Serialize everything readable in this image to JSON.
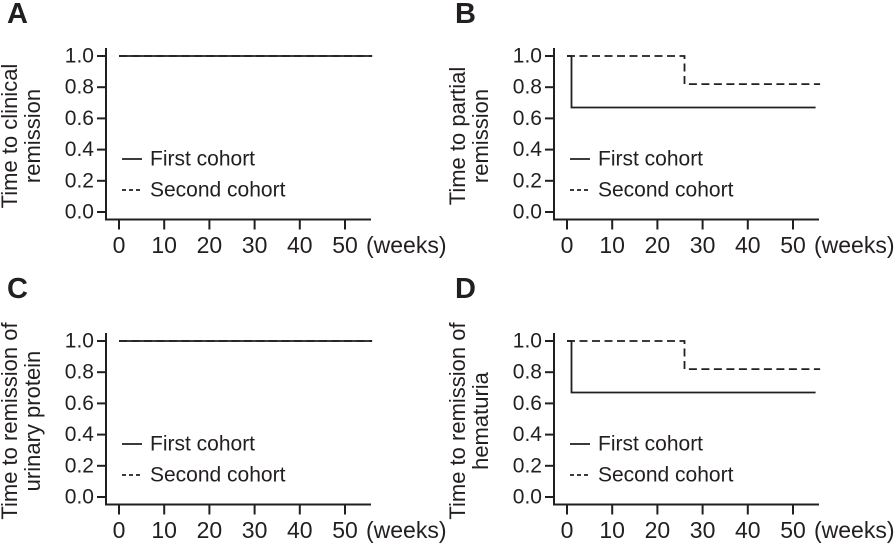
{
  "figure": {
    "background": "#ffffff",
    "ink_color": "#231f20",
    "panel_letters": [
      "A",
      "B",
      "C",
      "D"
    ]
  },
  "chart_data": [
    {
      "panel": "A",
      "type": "line",
      "ylabel": "Time to clinical remission",
      "ylabel_lines": [
        "Time to clinical",
        "remission"
      ],
      "xlabel": "(weeks)",
      "xticks": [
        0,
        10,
        20,
        30,
        40,
        50
      ],
      "ytick_labels": [
        "0.0",
        "0.2",
        "0.4",
        "0.6",
        "0.8",
        "1.0"
      ],
      "xlim": [
        0,
        56
      ],
      "ylim": [
        0,
        1.0
      ],
      "grid": false,
      "legend_position": "inside-lower-left",
      "legend": [
        {
          "label": "First cohort",
          "style": "solid"
        },
        {
          "label": "Second cohort",
          "style": "dashed"
        }
      ],
      "series": [
        {
          "name": "Second cohort",
          "style": "dashed",
          "points": [
            [
              0,
              1.0
            ],
            [
              56,
              1.0
            ]
          ]
        },
        {
          "name": "First cohort",
          "style": "solid",
          "points": [
            [
              0,
              1.0
            ],
            [
              56,
              1.0
            ]
          ]
        }
      ]
    },
    {
      "panel": "B",
      "type": "line",
      "ylabel": "Time to partial remission",
      "ylabel_lines": [
        "Time to partial",
        "remission"
      ],
      "xlabel": "(weeks)",
      "xticks": [
        0,
        10,
        20,
        30,
        40,
        50
      ],
      "ytick_labels": [
        "0.0",
        "0.2",
        "0.4",
        "0.6",
        "0.8",
        "1.0"
      ],
      "xlim": [
        0,
        56
      ],
      "ylim": [
        0,
        1.0
      ],
      "grid": false,
      "legend_position": "inside-lower-left",
      "legend": [
        {
          "label": "First cohort",
          "style": "solid"
        },
        {
          "label": "Second cohort",
          "style": "dashed"
        }
      ],
      "series": [
        {
          "name": "Second cohort",
          "style": "dashed",
          "points": [
            [
              0,
              1.0
            ],
            [
              26,
              1.0
            ],
            [
              26,
              0.82
            ],
            [
              56,
              0.82
            ]
          ]
        },
        {
          "name": "First cohort",
          "style": "solid",
          "points": [
            [
              0,
              1.0
            ],
            [
              1,
              1.0
            ],
            [
              1,
              0.67
            ],
            [
              55,
              0.67
            ]
          ]
        }
      ]
    },
    {
      "panel": "C",
      "type": "line",
      "ylabel": "Time to remission of urinary protein",
      "ylabel_lines": [
        "Time to remission of",
        "urinary protein"
      ],
      "xlabel": "(weeks)",
      "xticks": [
        0,
        10,
        20,
        30,
        40,
        50
      ],
      "ytick_labels": [
        "0.0",
        "0.2",
        "0.4",
        "0.6",
        "0.8",
        "1.0"
      ],
      "xlim": [
        0,
        56
      ],
      "ylim": [
        0,
        1.0
      ],
      "grid": false,
      "legend_position": "inside-lower-left",
      "legend": [
        {
          "label": "First cohort",
          "style": "solid"
        },
        {
          "label": "Second cohort",
          "style": "dashed"
        }
      ],
      "series": [
        {
          "name": "Second cohort",
          "style": "dashed",
          "points": [
            [
              0,
              1.0
            ],
            [
              56,
              1.0
            ]
          ]
        },
        {
          "name": "First cohort",
          "style": "solid",
          "points": [
            [
              0,
              1.0
            ],
            [
              56,
              1.0
            ]
          ]
        }
      ]
    },
    {
      "panel": "D",
      "type": "line",
      "ylabel": "Time to remission of hematuria",
      "ylabel_lines": [
        "Time to remission of",
        "hematuria"
      ],
      "xlabel": "(weeks)",
      "xticks": [
        0,
        10,
        20,
        30,
        40,
        50
      ],
      "ytick_labels": [
        "0.0",
        "0.2",
        "0.4",
        "0.6",
        "0.8",
        "1.0"
      ],
      "xlim": [
        0,
        56
      ],
      "ylim": [
        0,
        1.0
      ],
      "grid": false,
      "legend_position": "inside-lower-left",
      "legend": [
        {
          "label": "First cohort",
          "style": "solid"
        },
        {
          "label": "Second cohort",
          "style": "dashed"
        }
      ],
      "series": [
        {
          "name": "Second cohort",
          "style": "dashed",
          "points": [
            [
              0,
              1.0
            ],
            [
              26,
              1.0
            ],
            [
              26,
              0.82
            ],
            [
              56,
              0.82
            ]
          ]
        },
        {
          "name": "First cohort",
          "style": "solid",
          "points": [
            [
              0,
              1.0
            ],
            [
              1,
              1.0
            ],
            [
              1,
              0.67
            ],
            [
              55,
              0.67
            ]
          ]
        }
      ]
    }
  ]
}
